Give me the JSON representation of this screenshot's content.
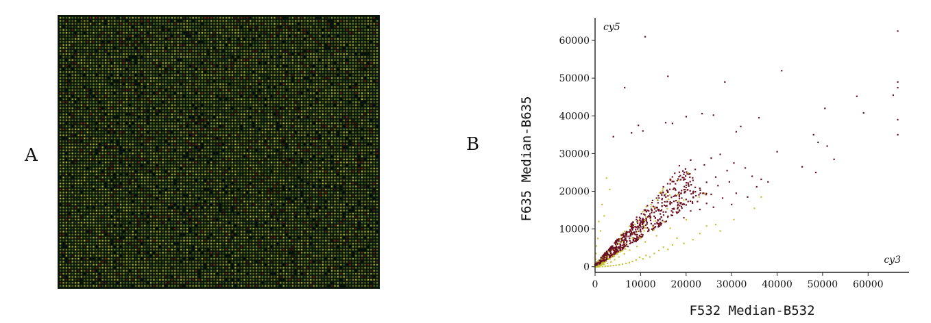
{
  "panels": {
    "a_label": "A",
    "b_label": "B"
  },
  "microarray": {
    "description_colors": {
      "background": "#07120a",
      "spot_yellow": "#d8e03a",
      "spot_green": "#7fa832",
      "spot_red": "#a23a1c"
    }
  },
  "chart_data": {
    "type": "scatter",
    "xlabel": "F532 Median-B532",
    "ylabel": "F635 Median-B635",
    "xlim": [
      0,
      69000
    ],
    "ylim": [
      -1500,
      66000
    ],
    "xticks": [
      0,
      10000,
      20000,
      30000,
      40000,
      50000,
      60000
    ],
    "xtick_labels": [
      "0",
      "10000",
      "20000",
      "30000",
      "40000",
      "50000",
      "60000"
    ],
    "yticks": [
      0,
      10000,
      20000,
      30000,
      40000,
      50000,
      60000
    ],
    "ytick_labels": [
      "0",
      "10000",
      "20000",
      "30000",
      "40000",
      "50000",
      "60000"
    ],
    "annotations": {
      "top_left": "cy5",
      "bottom_right": "cy3"
    },
    "colors": {
      "dark": "#6b1020",
      "light": "#c8c23a"
    },
    "series": [
      {
        "color": "#6b1020",
        "points": [
          [
            66500,
            62500
          ],
          [
            66500,
            49000
          ],
          [
            66500,
            47500
          ],
          [
            66500,
            39000
          ],
          [
            66500,
            35000
          ],
          [
            65500,
            45500
          ],
          [
            59000,
            40800
          ],
          [
            57500,
            45200
          ],
          [
            50500,
            42000
          ],
          [
            52500,
            28500
          ],
          [
            51000,
            32000
          ],
          [
            48000,
            35000
          ],
          [
            49000,
            33000
          ],
          [
            48500,
            25000
          ],
          [
            41000,
            52000
          ],
          [
            28500,
            49000
          ],
          [
            16000,
            50500
          ],
          [
            11000,
            61000
          ],
          [
            6500,
            47500
          ],
          [
            4000,
            34500
          ],
          [
            45500,
            26500
          ],
          [
            40000,
            30500
          ],
          [
            36000,
            39500
          ],
          [
            31000,
            35800
          ],
          [
            32000,
            37200
          ],
          [
            26000,
            40200
          ],
          [
            23500,
            40600
          ],
          [
            20000,
            39800
          ],
          [
            17000,
            38000
          ],
          [
            15500,
            38200
          ],
          [
            10500,
            36000
          ],
          [
            9500,
            37500
          ],
          [
            8000,
            35500
          ],
          [
            30500,
            27500
          ],
          [
            29000,
            25500
          ],
          [
            27500,
            29800
          ],
          [
            25500,
            28800
          ],
          [
            24000,
            27000
          ],
          [
            22000,
            25800
          ],
          [
            21000,
            28300
          ],
          [
            19500,
            24500
          ],
          [
            18500,
            26800
          ],
          [
            17500,
            24800
          ],
          [
            16500,
            23200
          ],
          [
            33000,
            26200
          ],
          [
            34500,
            24000
          ],
          [
            35500,
            21200
          ],
          [
            36500,
            23200
          ],
          [
            38000,
            22500
          ],
          [
            33500,
            18500
          ],
          [
            31000,
            19500
          ],
          [
            29500,
            22500
          ],
          [
            27000,
            21500
          ],
          [
            26500,
            23800
          ],
          [
            24500,
            22400
          ],
          [
            23000,
            20800
          ],
          [
            21500,
            22900
          ],
          [
            20500,
            21800
          ],
          [
            19000,
            20200
          ],
          [
            17800,
            18800
          ],
          [
            25500,
            19200
          ],
          [
            28000,
            18200
          ],
          [
            30000,
            16500
          ],
          [
            22500,
            17300
          ],
          [
            20000,
            16400
          ],
          [
            18200,
            15700
          ],
          [
            16500,
            17200
          ],
          [
            15200,
            16300
          ],
          [
            14000,
            15200
          ],
          [
            13000,
            14400
          ],
          [
            12000,
            13500
          ],
          [
            11200,
            12800
          ],
          [
            10500,
            12000
          ],
          [
            9800,
            11200
          ],
          [
            9000,
            10500
          ],
          [
            8200,
            9800
          ],
          [
            7500,
            9200
          ],
          [
            6800,
            8400
          ],
          [
            6000,
            7700
          ],
          [
            5200,
            6800
          ],
          [
            4500,
            6000
          ],
          [
            3800,
            5200
          ],
          [
            3200,
            4500
          ],
          [
            2600,
            3800
          ],
          [
            2000,
            3100
          ],
          [
            1500,
            2400
          ],
          [
            1000,
            1700
          ],
          [
            600,
            1000
          ],
          [
            14500,
            19500
          ],
          [
            13500,
            18200
          ],
          [
            12500,
            17000
          ],
          [
            11500,
            16200
          ],
          [
            10800,
            15000
          ],
          [
            15000,
            21200
          ],
          [
            16000,
            19800
          ],
          [
            17000,
            13600
          ],
          [
            18000,
            14200
          ],
          [
            19500,
            13000
          ],
          [
            21000,
            14800
          ],
          [
            23000,
            15200
          ],
          [
            24500,
            16800
          ],
          [
            26000,
            15800
          ],
          [
            14000,
            11000
          ],
          [
            12800,
            10200
          ],
          [
            11600,
            9400
          ],
          [
            10200,
            8600
          ],
          [
            9200,
            8000
          ],
          [
            8400,
            7200
          ]
        ]
      },
      {
        "color": "#c8c23a",
        "points": [
          [
            36500,
            18500
          ],
          [
            35000,
            15500
          ],
          [
            30500,
            12500
          ],
          [
            27500,
            9500
          ],
          [
            26500,
            11200
          ],
          [
            24500,
            10800
          ],
          [
            23000,
            8800
          ],
          [
            21500,
            7200
          ],
          [
            19500,
            6200
          ],
          [
            18000,
            7600
          ],
          [
            17000,
            5800
          ],
          [
            16000,
            4600
          ],
          [
            15000,
            5200
          ],
          [
            14000,
            4300
          ],
          [
            13000,
            3500
          ],
          [
            12000,
            2600
          ],
          [
            11200,
            3000
          ],
          [
            10500,
            2100
          ],
          [
            9800,
            2500
          ],
          [
            9000,
            1800
          ],
          [
            8200,
            1400
          ],
          [
            7500,
            1100
          ],
          [
            6800,
            900
          ],
          [
            6000,
            700
          ],
          [
            5300,
            500
          ],
          [
            4600,
            400
          ],
          [
            4000,
            300
          ],
          [
            3400,
            250
          ],
          [
            2800,
            180
          ],
          [
            2200,
            120
          ],
          [
            1600,
            80
          ],
          [
            1000,
            50
          ],
          [
            500,
            20
          ],
          [
            2500,
            23500
          ],
          [
            3200,
            20500
          ],
          [
            1500,
            16500
          ],
          [
            2000,
            13500
          ],
          [
            800,
            12000
          ],
          [
            1200,
            9500
          ],
          [
            600,
            7500
          ],
          [
            300,
            5500
          ],
          [
            200,
            3500
          ],
          [
            100,
            2000
          ],
          [
            20000,
            12500
          ],
          [
            16500,
            10200
          ],
          [
            13500,
            8200
          ],
          [
            11000,
            6600
          ],
          [
            9200,
            5400
          ],
          [
            7600,
            4400
          ],
          [
            6400,
            3400
          ],
          [
            5200,
            2600
          ],
          [
            4300,
            1900
          ],
          [
            3500,
            1300
          ],
          [
            2700,
            900
          ],
          [
            1900,
            600
          ],
          [
            1300,
            400
          ],
          [
            700,
            250
          ]
        ]
      }
    ],
    "cloud": {
      "core_count": 900,
      "note_only_for_render": ""
    }
  }
}
